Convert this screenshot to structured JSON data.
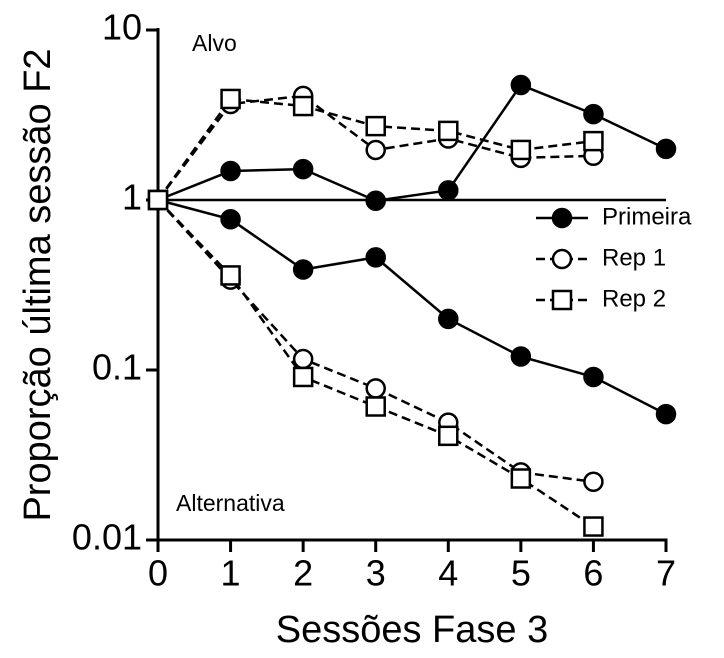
{
  "chart_data": {
    "type": "line",
    "log_y": true,
    "x_label": "Sessões Fase 3",
    "y_label": "Proporção última sessão F2",
    "annotations": [
      "Alvo",
      "Alternativa"
    ],
    "reference_line": 1,
    "x": [
      0,
      1,
      2,
      3,
      4,
      5,
      6,
      7
    ],
    "xlim": [
      0,
      7
    ],
    "xticks": [
      0,
      1,
      2,
      3,
      4,
      5,
      6,
      7
    ],
    "ylim": [
      0.01,
      10
    ],
    "yticks": [
      0.01,
      0.1,
      1,
      10
    ],
    "legend": "right",
    "series": [
      {
        "name": "Primeira",
        "color": "#000000",
        "marker": "circle",
        "filled": true,
        "dashed": false,
        "values": [
          1,
          1.48,
          1.52,
          0.99,
          1.14,
          4.75,
          3.2,
          2.0
        ],
        "values_alternativa": [
          1,
          0.77,
          0.39,
          0.46,
          0.2,
          0.12,
          0.091,
          0.055
        ]
      },
      {
        "name": "Rep 1",
        "color": "#000000",
        "marker": "circle",
        "filled": false,
        "dashed": true,
        "values": [
          1,
          3.67,
          4.1,
          1.97,
          2.3,
          1.77,
          1.82,
          null
        ],
        "values_alternativa": [
          1,
          0.34,
          0.116,
          0.078,
          0.049,
          0.025,
          0.022,
          null
        ]
      },
      {
        "name": "Rep 2",
        "color": "#000000",
        "marker": "square",
        "filled": false,
        "dashed": true,
        "values": [
          1,
          3.93,
          3.57,
          2.72,
          2.55,
          1.97,
          2.22,
          null
        ],
        "values_alternativa": [
          1,
          0.36,
          0.091,
          0.061,
          0.041,
          0.023,
          0.012,
          null
        ]
      }
    ]
  }
}
